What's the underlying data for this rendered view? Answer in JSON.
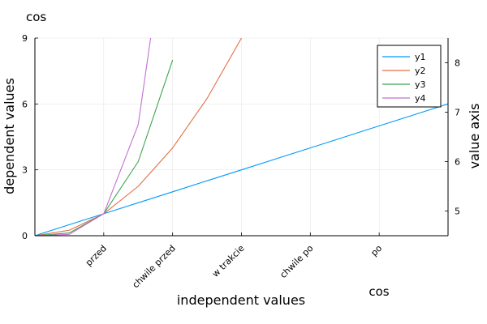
{
  "chart_data": {
    "type": "line",
    "title": "cos",
    "xlabel": "independent values",
    "ylabel": "dependent values",
    "y2label": "value axis",
    "x2label": "cos",
    "grid": true,
    "legend_position": "top-right",
    "x": [
      0,
      0.5,
      1,
      1.5,
      2,
      2.5,
      3,
      3.5,
      4,
      4.5,
      5,
      5.5,
      6
    ],
    "xlim": [
      0,
      6
    ],
    "ylim": [
      0,
      9
    ],
    "y2lim": [
      4.5,
      8.5
    ],
    "x_ticks": [
      {
        "value": 1,
        "label": "przed"
      },
      {
        "value": 2,
        "label": "chwile przed"
      },
      {
        "value": 3,
        "label": "w trakcie"
      },
      {
        "value": 4,
        "label": "chwile po"
      },
      {
        "value": 5,
        "label": "po"
      }
    ],
    "y_ticks": [
      0,
      3,
      6,
      9
    ],
    "y2_ticks": [
      5,
      6,
      7,
      8
    ],
    "series": [
      {
        "name": "y1",
        "color": "#009AFA",
        "x": [
          0,
          0.5,
          1,
          1.5,
          2,
          2.5,
          3,
          3.5,
          4,
          4.5,
          5,
          5.5,
          6
        ],
        "values": [
          0,
          0.5,
          1,
          1.5,
          2,
          2.5,
          3,
          3.5,
          4,
          4.5,
          5,
          5.5,
          6
        ]
      },
      {
        "name": "y2",
        "color": "#E36F47",
        "x": [
          0,
          0.5,
          1,
          1.5,
          2,
          2.5,
          3
        ],
        "values": [
          0,
          0.25,
          1,
          2.25,
          4,
          6.25,
          9
        ]
      },
      {
        "name": "y3",
        "color": "#3EA44E",
        "x": [
          0,
          0.5,
          1,
          1.5,
          2
        ],
        "values": [
          0,
          0.125,
          1,
          3.375,
          8
        ]
      },
      {
        "name": "y4",
        "color": "#C271D2",
        "x": [
          0,
          0.5,
          1,
          1.5,
          2
        ],
        "values": [
          0,
          0.0625,
          1,
          5.0625,
          16
        ]
      }
    ]
  }
}
